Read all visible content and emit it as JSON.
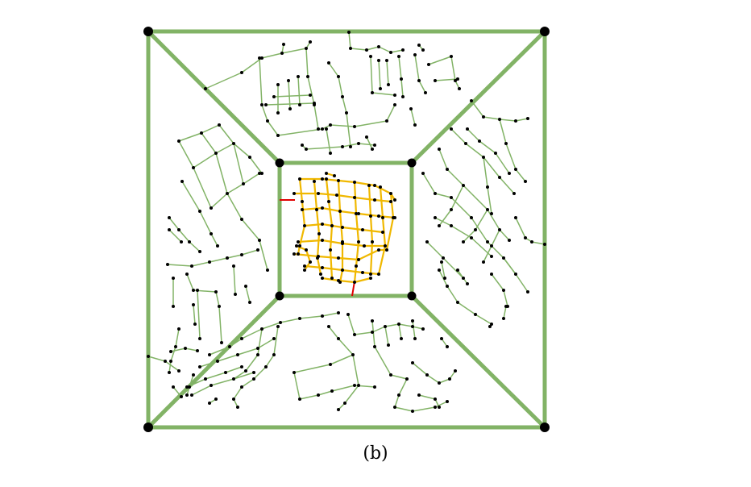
{
  "figure": {
    "caption": "(b)",
    "colors": {
      "frame": "#82b366",
      "outer_roads": "#82b366",
      "inner_roads": "#f0b800",
      "connector_roads": "#e00000",
      "nodes": "#000000",
      "background": "#ffffff"
    }
  }
}
